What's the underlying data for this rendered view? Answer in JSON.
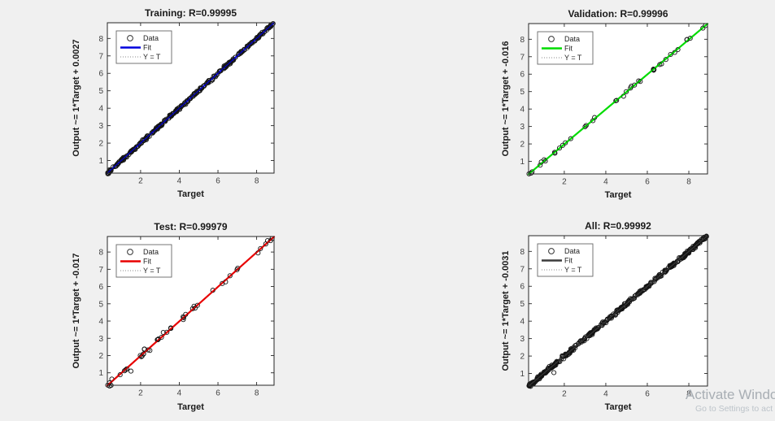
{
  "figure": {
    "background_color": "#f0f0f0",
    "plot_background": "#ffffff",
    "axis_color": "#262626",
    "marker_edge_color": "#141414",
    "identity_line_color": "#666666"
  },
  "watermark": {
    "line1": "Activate Windo",
    "line2": "Go to Settings to act"
  },
  "chart_data": [
    {
      "type": "scatter",
      "name": "training",
      "title": "Training: R=0.99995",
      "r_value": 0.99995,
      "xlabel": "Target",
      "ylabel": "Output ~= 1*Target + 0.0027",
      "legend": [
        "Data",
        "Fit",
        "Y = T"
      ],
      "legend_position": "top-left",
      "grid": false,
      "xlim": [
        0.28,
        8.9
      ],
      "ylim": [
        0.28,
        8.9
      ],
      "x_ticks": [
        2,
        4,
        6,
        8
      ],
      "y_ticks": [
        1,
        2,
        3,
        4,
        5,
        6,
        7,
        8
      ],
      "fit": {
        "slope": 1,
        "intercept": 0.0027,
        "color": "#0000DD"
      },
      "scatter": {
        "n": 270,
        "seed": 11,
        "noise": 0.04,
        "range": [
          0.3,
          8.85
        ],
        "density": "very dense along diagonal"
      },
      "outliers": []
    },
    {
      "type": "scatter",
      "name": "validation",
      "title": "Validation: R=0.99996",
      "r_value": 0.99996,
      "xlabel": "Target",
      "ylabel": "Output ~= 1*Target + -0.016",
      "legend": [
        "Data",
        "Fit",
        "Y = T"
      ],
      "legend_position": "top-left",
      "grid": false,
      "xlim": [
        0.28,
        8.9
      ],
      "ylim": [
        0.28,
        8.9
      ],
      "x_ticks": [
        2,
        4,
        6,
        8
      ],
      "y_ticks": [
        1,
        2,
        3,
        4,
        5,
        6,
        7,
        8
      ],
      "fit": {
        "slope": 1,
        "intercept": -0.016,
        "color": "#00DC00"
      },
      "scatter": {
        "n": 38,
        "seed": 23,
        "noise": 0.05,
        "range": [
          0.3,
          8.8
        ],
        "density": "sparse circles on diagonal"
      },
      "outliers": []
    },
    {
      "type": "scatter",
      "name": "test",
      "title": "Test: R=0.99979",
      "r_value": 0.99979,
      "xlabel": "Target",
      "ylabel": "Output ~= 1*Target + -0.017",
      "legend": [
        "Data",
        "Fit",
        "Y = T"
      ],
      "legend_position": "top-left",
      "grid": false,
      "xlim": [
        0.28,
        8.9
      ],
      "ylim": [
        0.28,
        8.9
      ],
      "x_ticks": [
        2,
        4,
        6,
        8
      ],
      "y_ticks": [
        1,
        2,
        3,
        4,
        5,
        6,
        7,
        8
      ],
      "fit": {
        "slope": 1,
        "intercept": -0.017,
        "color": "#E80000"
      },
      "scatter": {
        "n": 44,
        "seed": 37,
        "noise": 0.09,
        "range": [
          0.3,
          8.8
        ],
        "density": "sparse circles on diagonal"
      },
      "outliers": [
        [
          1.5,
          1.1
        ]
      ]
    },
    {
      "type": "scatter",
      "name": "all",
      "title": "All: R=0.99992",
      "r_value": 0.99992,
      "xlabel": "Target",
      "ylabel": "Output ~= 1*Target + -0.0031",
      "legend": [
        "Data",
        "Fit",
        "Y = T"
      ],
      "legend_position": "top-left",
      "grid": false,
      "xlim": [
        0.28,
        8.9
      ],
      "ylim": [
        0.28,
        8.9
      ],
      "x_ticks": [
        2,
        4,
        6,
        8
      ],
      "y_ticks": [
        1,
        2,
        3,
        4,
        5,
        6,
        7,
        8
      ],
      "fit": {
        "slope": 1,
        "intercept": -0.0031,
        "color": "#3C3C3C"
      },
      "scatter": {
        "n": 350,
        "seed": 53,
        "noise": 0.05,
        "range": [
          0.3,
          8.85
        ],
        "density": "very dense along diagonal"
      },
      "outliers": [
        [
          1.5,
          1.05
        ]
      ]
    }
  ]
}
